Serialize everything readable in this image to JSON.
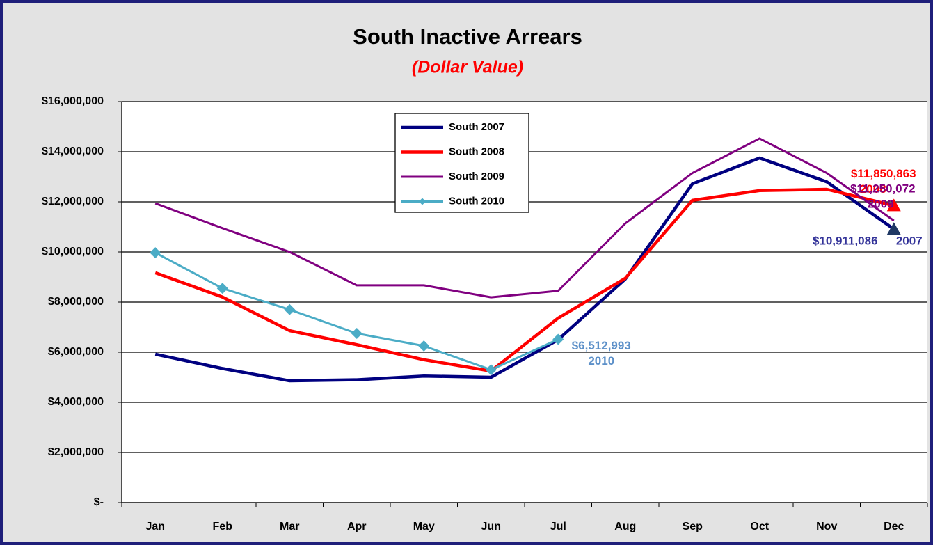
{
  "chart_data": {
    "type": "line",
    "title": "South Inactive Arrears",
    "subtitle": "(Dollar Value)",
    "categories": [
      "Jan",
      "Feb",
      "Mar",
      "Apr",
      "May",
      "Jun",
      "Jul",
      "Aug",
      "Sep",
      "Oct",
      "Nov",
      "Dec"
    ],
    "series": [
      {
        "name": "South 2007",
        "color": "#000080",
        "label_color": "#333399",
        "end_marker": "triangle",
        "marker_color": "#1f3864",
        "values": [
          5920000,
          5350000,
          4860000,
          4900000,
          5050000,
          5000000,
          6500000,
          8920000,
          12720000,
          13750000,
          12800000,
          10911086
        ],
        "value_labels": [
          null,
          null,
          null,
          null,
          null,
          null,
          null,
          null,
          null,
          null,
          null,
          "$10,911,086"
        ],
        "annotation": "2007"
      },
      {
        "name": "South 2008",
        "color": "#ff0000",
        "label_color": "#ff0000",
        "end_marker": "triangle",
        "marker_color": "#ff0000",
        "values": [
          9170000,
          8200000,
          6860000,
          6300000,
          5700000,
          5250000,
          7360000,
          8950000,
          12060000,
          12450000,
          12500000,
          11850863
        ],
        "value_labels": [
          null,
          null,
          null,
          null,
          null,
          null,
          null,
          null,
          null,
          null,
          null,
          "$11,850,863"
        ],
        "annotation": "2008"
      },
      {
        "name": "South 2009",
        "color": "#800080",
        "label_color": "#800080",
        "values": [
          11940000,
          10950000,
          10000000,
          8670000,
          8670000,
          8190000,
          8450000,
          11140000,
          13150000,
          14530000,
          13150000,
          11250072
        ],
        "value_labels": [
          null,
          null,
          null,
          null,
          null,
          null,
          null,
          null,
          null,
          null,
          null,
          "$11,250,072"
        ],
        "annotation": "2009"
      },
      {
        "name": "South 2010",
        "color": "#4bacc6",
        "label_color": "#5b8fc8",
        "marker": "diamond",
        "marker_color": "#4bacc6",
        "values": [
          9970000,
          8550000,
          7700000,
          6750000,
          6250000,
          5300000,
          6512993,
          null,
          null,
          null,
          null,
          null
        ],
        "value_labels": [
          null,
          null,
          null,
          null,
          null,
          null,
          "$6,512,993",
          null,
          null,
          null,
          null,
          null
        ],
        "annotation": "2010"
      }
    ],
    "ylim": [
      0,
      16000000
    ],
    "yticks": [
      {
        "value": 0,
        "label": "$-"
      },
      {
        "value": 2000000,
        "label": "$2,000,000"
      },
      {
        "value": 4000000,
        "label": "$4,000,000"
      },
      {
        "value": 6000000,
        "label": "$6,000,000"
      },
      {
        "value": 8000000,
        "label": "$8,000,000"
      },
      {
        "value": 10000000,
        "label": "$10,000,000"
      },
      {
        "value": 12000000,
        "label": "$12,000,000"
      },
      {
        "value": 14000000,
        "label": "$14,000,000"
      },
      {
        "value": 16000000,
        "label": "$16,000,000"
      }
    ],
    "grid": true
  }
}
